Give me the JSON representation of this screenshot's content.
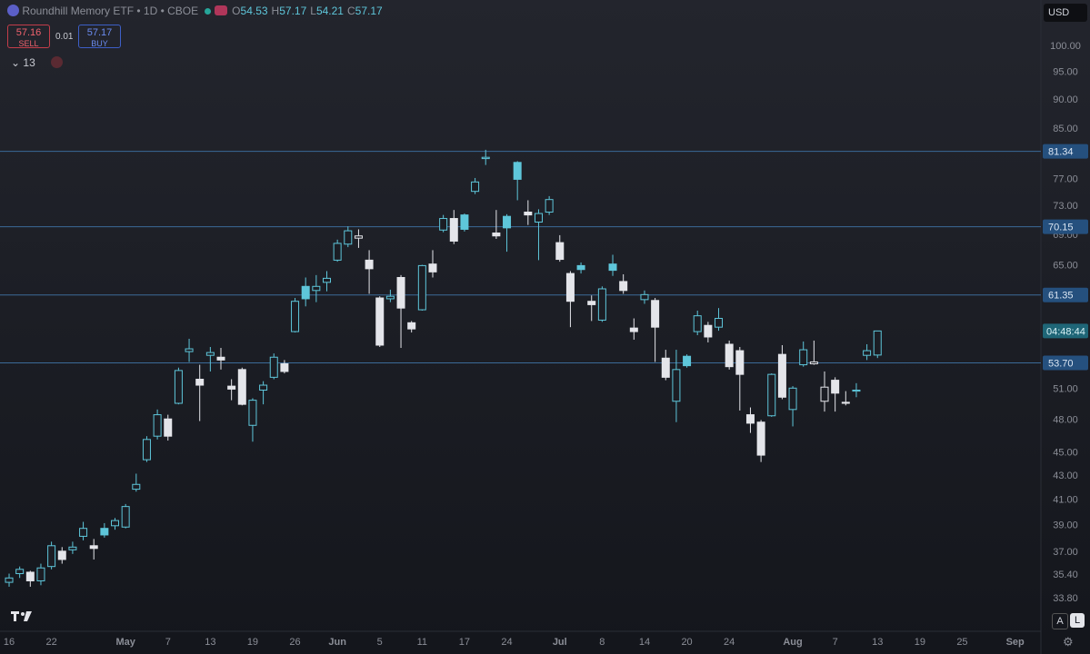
{
  "header": {
    "symbol": "Roundhill Memory ETF • 1D • CBOE",
    "ohlc": [
      {
        "key": "O",
        "value": "54.53"
      },
      {
        "key": "H",
        "value": "57.17"
      },
      {
        "key": "L",
        "value": "54.21"
      },
      {
        "key": "C",
        "value": "57.17"
      }
    ],
    "sell": {
      "price": "57.16",
      "label": "SELL"
    },
    "spread": "0.01",
    "buy": {
      "price": "57.17",
      "label": "BUY"
    },
    "indicators_count": "13",
    "currency": "USD",
    "buttons": [
      "A",
      "L"
    ]
  },
  "chart_data": {
    "type": "candlestick",
    "log_scale": true,
    "up_color": "#5ec6da",
    "down_color": "#e4e5ea",
    "open": [
      34.9,
      35.5,
      35.6,
      35.0,
      36.0,
      37.1,
      37.2,
      38.2,
      37.5,
      38.8,
      39.0,
      38.9,
      41.9,
      44.4,
      46.5,
      48.1,
      49.6,
      54.9,
      52.0,
      54.5,
      54.3,
      51.3,
      53.0,
      47.5,
      50.9,
      52.2,
      53.6,
      57.1,
      62.4,
      61.9,
      62.9,
      65.7,
      67.8,
      68.6,
      65.7,
      61.0,
      60.9,
      63.5,
      58.1,
      59.6,
      65.2,
      69.7,
      71.3,
      71.8,
      75.2,
      80.2,
      69.3,
      71.6,
      79.6,
      72.2,
      70.8,
      72.2,
      68.0,
      64.0,
      65.0,
      60.6,
      58.4,
      65.2,
      63.0,
      57.5,
      60.8,
      60.7,
      54.2,
      49.8,
      54.4,
      57.1,
      57.8,
      57.6,
      55.7,
      55.0,
      48.5,
      47.8,
      48.4,
      54.6,
      49.0,
      53.5,
      53.6,
      49.8,
      51.9,
      49.7,
      50.8,
      54.5,
      54.53
    ],
    "high": [
      35.5,
      36.0,
      35.7,
      36.2,
      37.8,
      37.4,
      37.8,
      39.3,
      38.0,
      39.2,
      39.6,
      40.7,
      43.2,
      46.5,
      49.0,
      48.5,
      53.2,
      56.3,
      53.5,
      55.4,
      55.3,
      52.0,
      53.2,
      50.1,
      51.8,
      54.7,
      54.0,
      61.0,
      63.5,
      63.8,
      64.3,
      68.4,
      70.2,
      69.8,
      67.0,
      61.2,
      62.0,
      63.8,
      58.3,
      65.1,
      67.0,
      71.8,
      72.5,
      72.0,
      77.2,
      81.6,
      72.5,
      71.9,
      79.8,
      73.9,
      72.6,
      74.5,
      69.0,
      64.3,
      65.4,
      61.3,
      62.4,
      66.4,
      63.9,
      58.6,
      61.9,
      61.0,
      55.1,
      55.1,
      54.6,
      59.5,
      58.2,
      59.8,
      56.1,
      55.4,
      49.2,
      48.0,
      52.6,
      55.6,
      51.3,
      56.0,
      56.1,
      52.8,
      52.2,
      50.8,
      51.6,
      55.7,
      57.17
    ],
    "low": [
      34.6,
      35.2,
      34.6,
      34.7,
      35.8,
      36.2,
      36.9,
      37.9,
      36.5,
      38.1,
      38.7,
      38.8,
      41.7,
      44.2,
      46.2,
      46.1,
      49.5,
      53.8,
      47.9,
      52.8,
      53.0,
      49.9,
      49.4,
      46.0,
      49.5,
      52.0,
      52.6,
      57.0,
      60.0,
      60.5,
      61.8,
      65.5,
      67.4,
      67.3,
      61.5,
      55.4,
      60.5,
      55.3,
      57.0,
      59.5,
      63.5,
      69.4,
      67.8,
      69.5,
      74.8,
      79.2,
      68.5,
      66.8,
      73.9,
      70.4,
      65.7,
      71.8,
      65.5,
      57.6,
      64.0,
      58.3,
      58.2,
      63.7,
      61.5,
      56.2,
      60.3,
      53.8,
      51.9,
      47.8,
      53.2,
      56.7,
      55.9,
      57.2,
      53.0,
      48.9,
      46.8,
      44.2,
      48.3,
      50.0,
      47.4,
      53.3,
      53.5,
      48.8,
      48.8,
      49.4,
      50.2,
      54.0,
      54.21
    ],
    "close": [
      35.2,
      35.8,
      35.0,
      35.9,
      37.5,
      36.5,
      37.4,
      38.8,
      37.3,
      38.3,
      39.4,
      40.5,
      42.3,
      46.2,
      48.5,
      46.5,
      52.9,
      55.2,
      51.4,
      54.8,
      54.0,
      51.0,
      49.5,
      49.9,
      51.4,
      54.3,
      52.8,
      60.6,
      60.9,
      62.4,
      63.4,
      67.9,
      69.6,
      68.9,
      64.6,
      55.6,
      61.2,
      59.8,
      57.4,
      65.0,
      64.2,
      71.3,
      68.2,
      69.8,
      76.6,
      80.4,
      68.9,
      70.0,
      77.0,
      71.8,
      72.0,
      74.0,
      65.8,
      60.6,
      64.5,
      60.2,
      62.1,
      64.4,
      61.9,
      57.1,
      61.4,
      57.6,
      52.2,
      53.0,
      53.4,
      58.9,
      56.5,
      58.6,
      53.3,
      52.5,
      47.7,
      44.8,
      52.5,
      50.2,
      51.1,
      55.1,
      53.8,
      51.2,
      50.6,
      49.6,
      50.9,
      55.0,
      57.17
    ],
    "ylim": [
      31.7,
      109.5
    ],
    "yticks": [
      {
        "value": 100,
        "label": "100.00"
      },
      {
        "value": 95,
        "label": "95.00"
      },
      {
        "value": 90,
        "label": "90.00"
      },
      {
        "value": 85,
        "label": "85.00"
      },
      {
        "value": 77,
        "label": "77.00"
      },
      {
        "value": 73,
        "label": "73.00"
      },
      {
        "value": 69,
        "label": "69.00"
      },
      {
        "value": 65,
        "label": "65.00"
      },
      {
        "value": 51,
        "label": "51.00"
      },
      {
        "value": 48,
        "label": "48.00"
      },
      {
        "value": 45,
        "label": "45.00"
      },
      {
        "value": 43,
        "label": "43.00"
      },
      {
        "value": 41,
        "label": "41.00"
      },
      {
        "value": 39,
        "label": "39.00"
      },
      {
        "value": 37,
        "label": "37.00"
      },
      {
        "value": 35.4,
        "label": "35.40"
      },
      {
        "value": 33.8,
        "label": "33.80"
      }
    ],
    "xlim": [
      -0.86,
      97.43
    ],
    "xticks": [
      {
        "value": 0,
        "label": "16"
      },
      {
        "value": 4,
        "label": "22"
      },
      {
        "value": 11,
        "label": "May"
      },
      {
        "value": 15,
        "label": "7"
      },
      {
        "value": 19,
        "label": "13"
      },
      {
        "value": 23,
        "label": "19"
      },
      {
        "value": 27,
        "label": "26"
      },
      {
        "value": 31,
        "label": "Jun"
      },
      {
        "value": 35,
        "label": "5"
      },
      {
        "value": 39,
        "label": "11"
      },
      {
        "value": 43,
        "label": "17"
      },
      {
        "value": 47,
        "label": "24"
      },
      {
        "value": 52,
        "label": "Jul"
      },
      {
        "value": 56,
        "label": "8"
      },
      {
        "value": 60,
        "label": "14"
      },
      {
        "value": 64,
        "label": "20"
      },
      {
        "value": 68,
        "label": "24"
      },
      {
        "value": 74,
        "label": "Aug"
      },
      {
        "value": 78,
        "label": "7"
      },
      {
        "value": 82,
        "label": "13"
      },
      {
        "value": 86,
        "label": "19"
      },
      {
        "value": 90,
        "label": "25"
      },
      {
        "value": 95,
        "label": "Sep"
      }
    ],
    "price_lines": [
      81.34,
      70.15,
      61.35,
      {
        "value": 53.7,
        "label": "53.70"
      }
    ],
    "countdown": "04:48:44"
  }
}
